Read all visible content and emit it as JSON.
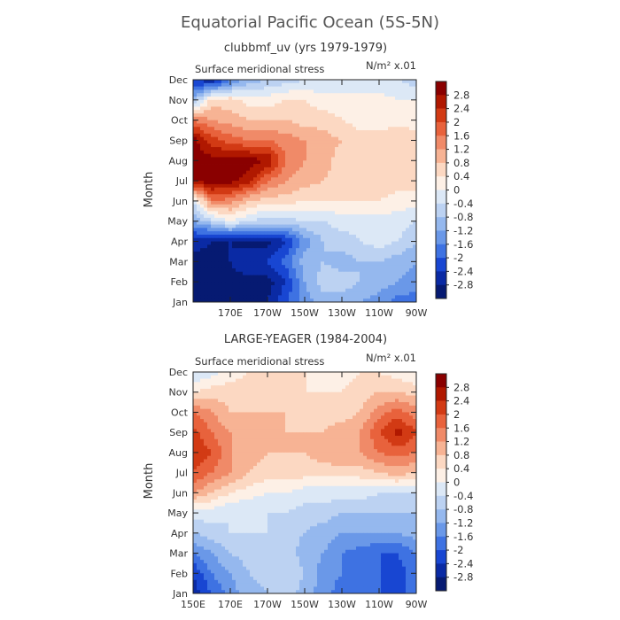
{
  "page": {
    "title": "Equatorial Pacific Ocean (5S-5N)"
  },
  "chart_data": [
    {
      "type": "heatmap",
      "title": "clubbmf_uv (yrs 1979-1979)",
      "subtitle": "Surface meridional stress",
      "units_label": "N/m² x.01",
      "ylabel": "Month",
      "x_ticks": [
        "170E",
        "170W",
        "150W",
        "130W",
        "110W",
        "90W"
      ],
      "x_tick_lon": [
        170,
        190,
        210,
        230,
        250,
        270
      ],
      "xlim": [
        150,
        270
      ],
      "y_ticks": [
        "Jan",
        "Feb",
        "Mar",
        "Apr",
        "May",
        "Jun",
        "Jul",
        "Aug",
        "Sep",
        "Oct",
        "Nov",
        "Dec"
      ],
      "colorbar_levels": [
        "2.8",
        "2.4",
        "2",
        "1.6",
        "1.2",
        "0.8",
        "0.4",
        "0",
        "-0.4",
        "-0.8",
        "-1.2",
        "-1.6",
        "-2",
        "-2.4",
        "-2.8"
      ],
      "colorbar_colors": [
        "#8a0000",
        "#b01800",
        "#d23a14",
        "#e8623c",
        "#f08a68",
        "#f7b394",
        "#fcd8c2",
        "#fdf0e6",
        "#dce8f6",
        "#bcd2f2",
        "#95b8ee",
        "#6a98e8",
        "#3e72e2",
        "#1846d2",
        "#0a2aa4",
        "#061a72"
      ],
      "lon": [
        150,
        160,
        170,
        180,
        190,
        200,
        210,
        220,
        230,
        240,
        250,
        260,
        270
      ],
      "months": [
        "Jan",
        "Feb",
        "Mar",
        "Apr",
        "May",
        "Jun",
        "Jul",
        "Aug",
        "Sep",
        "Oct",
        "Nov",
        "Dec"
      ],
      "values": [
        [
          -3.0,
          -3.0,
          -3.0,
          -3.0,
          -2.8,
          -2.0,
          -1.4,
          -1.0,
          -1.0,
          -1.2,
          -1.4,
          -1.8,
          -1.8
        ],
        [
          -3.0,
          -3.0,
          -3.0,
          -3.0,
          -3.0,
          -2.4,
          -1.2,
          -0.6,
          -0.6,
          -0.8,
          -1.0,
          -1.2,
          -1.4
        ],
        [
          -3.0,
          -3.0,
          -2.8,
          -2.4,
          -2.4,
          -1.8,
          -1.0,
          -0.8,
          -1.0,
          -0.8,
          -0.8,
          -1.0,
          -1.2
        ],
        [
          -2.6,
          -2.8,
          -2.8,
          -3.0,
          -3.0,
          -2.4,
          -1.4,
          -0.8,
          -0.6,
          -0.4,
          -0.2,
          -0.4,
          -0.8
        ],
        [
          -1.2,
          -0.6,
          0.0,
          -0.4,
          -0.6,
          -0.6,
          -0.4,
          -0.4,
          -0.2,
          -0.2,
          -0.2,
          -0.2,
          -0.4
        ],
        [
          -0.4,
          1.6,
          1.4,
          0.8,
          0.6,
          0.6,
          0.4,
          0.4,
          0.4,
          0.4,
          0.4,
          0.2,
          0.2
        ],
        [
          3.0,
          3.0,
          3.0,
          2.6,
          1.6,
          1.2,
          1.0,
          0.8,
          0.6,
          0.8,
          0.8,
          0.6,
          0.6
        ],
        [
          3.0,
          3.0,
          3.0,
          3.0,
          2.8,
          1.6,
          1.2,
          1.0,
          0.6,
          0.8,
          0.6,
          0.6,
          0.8
        ],
        [
          3.0,
          2.2,
          1.8,
          1.6,
          1.6,
          1.4,
          1.2,
          1.0,
          0.8,
          0.6,
          0.6,
          0.8,
          0.6
        ],
        [
          1.6,
          1.2,
          1.0,
          0.8,
          0.8,
          0.8,
          0.6,
          0.6,
          0.4,
          0.2,
          0.2,
          0.2,
          0.2
        ],
        [
          -1.0,
          0.6,
          0.6,
          0.2,
          0.2,
          0.4,
          0.4,
          0.2,
          0.2,
          0.2,
          0.2,
          0.0,
          0.0
        ],
        [
          -2.4,
          -2.8,
          -1.8,
          -1.0,
          -0.8,
          -0.6,
          -0.4,
          -0.4,
          -0.4,
          -0.4,
          -0.4,
          -0.4,
          -0.6
        ]
      ]
    },
    {
      "type": "heatmap",
      "title": "LARGE-YEAGER (1984-2004)",
      "subtitle": "Surface meridional stress",
      "units_label": "N/m² x.01",
      "ylabel": "Month",
      "x_ticks": [
        "150E",
        "170E",
        "170W",
        "150W",
        "130W",
        "110W",
        "90W"
      ],
      "x_tick_lon": [
        150,
        170,
        190,
        210,
        230,
        250,
        270
      ],
      "xlim": [
        150,
        270
      ],
      "y_ticks": [
        "Jan",
        "Feb",
        "Mar",
        "Apr",
        "May",
        "Jun",
        "Jul",
        "Aug",
        "Sep",
        "Oct",
        "Nov",
        "Dec"
      ],
      "colorbar_levels": [
        "2.8",
        "2.4",
        "2",
        "1.6",
        "1.2",
        "0.8",
        "0.4",
        "0",
        "-0.4",
        "-0.8",
        "-1.2",
        "-1.6",
        "-2",
        "-2.4",
        "-2.8"
      ],
      "colorbar_colors": [
        "#8a0000",
        "#b01800",
        "#d23a14",
        "#e8623c",
        "#f08a68",
        "#f7b394",
        "#fcd8c2",
        "#fdf0e6",
        "#dce8f6",
        "#bcd2f2",
        "#95b8ee",
        "#6a98e8",
        "#3e72e2",
        "#1846d2",
        "#0a2aa4",
        "#061a72"
      ],
      "lon": [
        150,
        160,
        170,
        180,
        190,
        200,
        210,
        220,
        230,
        240,
        250,
        260,
        270
      ],
      "months": [
        "Jan",
        "Feb",
        "Mar",
        "Apr",
        "May",
        "Jun",
        "Jul",
        "Aug",
        "Sep",
        "Oct",
        "Nov",
        "Dec"
      ],
      "values": [
        [
          -2.6,
          -2.0,
          -1.4,
          -1.0,
          -0.8,
          -0.6,
          -1.0,
          -1.4,
          -1.8,
          -1.8,
          -2.0,
          -2.2,
          -1.8
        ],
        [
          -2.4,
          -1.6,
          -1.2,
          -0.8,
          -0.6,
          -0.4,
          -0.8,
          -1.4,
          -1.6,
          -1.8,
          -2.0,
          -2.2,
          -1.8
        ],
        [
          -1.6,
          -1.2,
          -0.8,
          -0.6,
          -0.4,
          -0.6,
          -1.0,
          -1.2,
          -1.6,
          -1.8,
          -2.0,
          -2.0,
          -1.6
        ],
        [
          -0.8,
          -0.6,
          -0.4,
          -0.4,
          -0.4,
          -0.6,
          -0.8,
          -1.0,
          -1.2,
          -1.2,
          -1.2,
          -1.2,
          -1.0
        ],
        [
          -0.2,
          -0.2,
          -0.4,
          -0.4,
          -0.4,
          -0.4,
          -0.6,
          -0.6,
          -0.8,
          -0.8,
          -0.8,
          -0.8,
          -0.8
        ],
        [
          1.2,
          0.8,
          0.4,
          0.2,
          0.0,
          0.0,
          -0.2,
          -0.2,
          -0.2,
          -0.2,
          -0.4,
          -0.4,
          -0.4
        ],
        [
          2.0,
          1.6,
          1.2,
          0.8,
          0.6,
          0.6,
          0.6,
          0.6,
          0.6,
          0.6,
          0.8,
          1.0,
          0.8
        ],
        [
          2.4,
          2.0,
          1.2,
          1.0,
          0.8,
          0.8,
          0.8,
          1.0,
          1.2,
          1.2,
          1.6,
          1.8,
          1.6
        ],
        [
          2.2,
          1.6,
          1.2,
          1.0,
          0.8,
          0.8,
          0.8,
          0.8,
          1.0,
          1.2,
          2.0,
          2.6,
          2.0
        ],
        [
          1.6,
          1.2,
          0.8,
          0.8,
          0.8,
          0.8,
          0.6,
          0.6,
          0.6,
          0.8,
          1.4,
          1.8,
          1.4
        ],
        [
          0.4,
          0.6,
          0.6,
          0.6,
          0.6,
          0.6,
          0.4,
          0.4,
          0.4,
          0.6,
          0.8,
          0.8,
          0.6
        ],
        [
          -0.4,
          -0.2,
          0.2,
          0.4,
          0.4,
          0.4,
          0.4,
          0.2,
          0.2,
          0.4,
          0.4,
          0.2,
          0.0
        ]
      ]
    }
  ]
}
